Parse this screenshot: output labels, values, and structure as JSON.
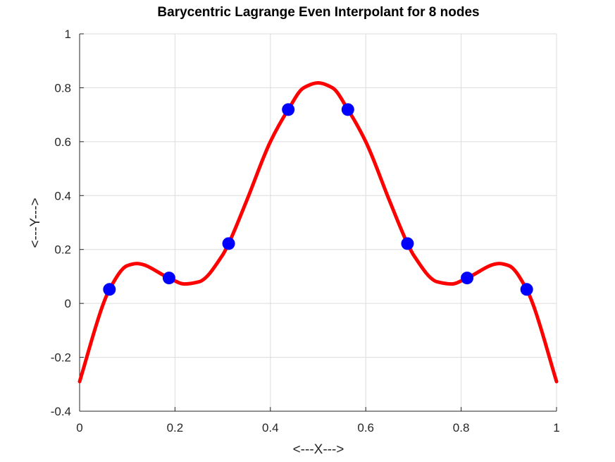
{
  "chart_data": {
    "type": "line",
    "title": "Barycentric Lagrange Even Interpolant for 8 nodes",
    "xlabel": "<---X--->",
    "ylabel": "<---Y--->",
    "xlim": [
      0,
      1
    ],
    "ylim": [
      -0.4,
      1
    ],
    "xticks": [
      0,
      0.2,
      0.4,
      0.6,
      0.8,
      1
    ],
    "xtick_labels": [
      "0",
      "0.2",
      "0.4",
      "0.6",
      "0.8",
      "1"
    ],
    "yticks": [
      -0.4,
      -0.2,
      0,
      0.2,
      0.4,
      0.6,
      0.8,
      1
    ],
    "ytick_labels": [
      "-0.4",
      "-0.2",
      "0",
      "0.2",
      "0.4",
      "0.6",
      "0.8",
      "1"
    ],
    "grid": true,
    "colors": {
      "nodes": "#0000ff",
      "interpolant": "#ff0000",
      "grid": "#dcdcdc",
      "axis": "#262626"
    },
    "series": [
      {
        "kind": "scatter",
        "x": [
          0.0625,
          0.1875,
          0.3125,
          0.4375,
          0.5625,
          0.6875,
          0.8125,
          0.9375
        ],
        "y": [
          0.0519,
          0.0943,
          0.2219,
          0.7191,
          0.7191,
          0.2219,
          0.0943,
          0.0519
        ]
      },
      {
        "kind": "line",
        "x": [
          0,
          0.05,
          0.0625,
          0.1,
          0.12,
          0.1875,
          0.22,
          0.25,
          0.3,
          0.3125,
          0.35,
          0.4,
          0.4375,
          0.47,
          0.5,
          0.53,
          0.5625,
          0.6,
          0.65,
          0.6875,
          0.7,
          0.75,
          0.78,
          0.8125,
          0.88,
          0.9,
          0.9375,
          0.95,
          1
        ],
        "y": [
          -0.29,
          0.0,
          0.0519,
          0.14,
          0.148,
          0.0943,
          0.072,
          0.08,
          0.18,
          0.2219,
          0.38,
          0.6,
          0.7191,
          0.8,
          0.818,
          0.8,
          0.7191,
          0.6,
          0.38,
          0.2219,
          0.18,
          0.08,
          0.072,
          0.0943,
          0.148,
          0.14,
          0.0519,
          0.0,
          -0.29
        ]
      }
    ]
  }
}
